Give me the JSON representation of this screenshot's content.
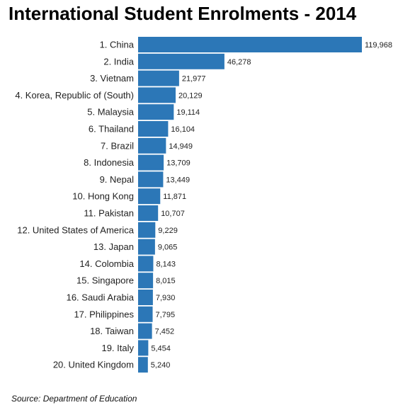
{
  "chart_data": {
    "type": "bar",
    "orientation": "horizontal",
    "title": "International Student Enrolments - 2014",
    "categories": [
      "1. China",
      "2. India",
      "3. Vietnam",
      "4. Korea, Republic of (South)",
      "5. Malaysia",
      "6. Thailand",
      "7. Brazil",
      "8. Indonesia",
      "9. Nepal",
      "10. Hong Kong",
      "11. Pakistan",
      "12. United States of America",
      "13. Japan",
      "14. Colombia",
      "15. Singapore",
      "16. Saudi Arabia",
      "17. Philippines",
      "18. Taiwan",
      "19. Italy",
      "20. United Kingdom"
    ],
    "values": [
      119968,
      46278,
      21977,
      20129,
      19114,
      16104,
      14949,
      13709,
      13449,
      11871,
      10707,
      9229,
      9065,
      8143,
      8015,
      7930,
      7795,
      7452,
      5454,
      5240
    ],
    "value_labels": [
      "119,968",
      "46,278",
      "21,977",
      "20,129",
      "19,114",
      "16,104",
      "14,949",
      "13,709",
      "13,449",
      "11,871",
      "10,707",
      "9,229",
      "9,065",
      "8,143",
      "8,015",
      "7,930",
      "7,795",
      "7,452",
      "5,454",
      "5,240"
    ],
    "xlim": [
      0,
      119968
    ],
    "grid": false,
    "bar_color": "#2c77b7",
    "source": "Source: Department of Education"
  }
}
